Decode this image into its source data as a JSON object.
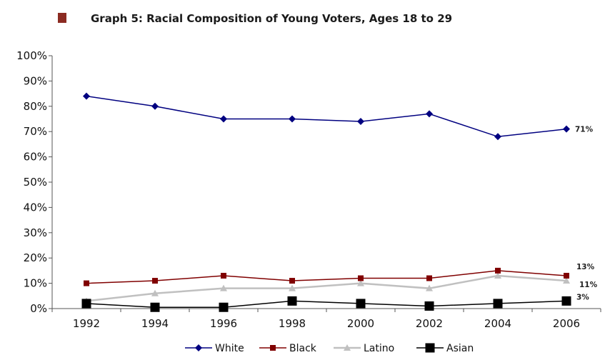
{
  "title_marker_color": "#8B2B22",
  "chart_data": {
    "type": "line",
    "title": "Graph 5: Racial Composition of Young Voters, Ages 18 to 29",
    "xlabel": "",
    "ylabel": "",
    "x": [
      "1992",
      "1994",
      "1996",
      "1998",
      "2000",
      "2002",
      "2004",
      "2006"
    ],
    "ylim": [
      0,
      100
    ],
    "y_ticks": [
      "0%",
      "10%",
      "20%",
      "30%",
      "40%",
      "50%",
      "60%",
      "70%",
      "80%",
      "90%",
      "100%"
    ],
    "grid": false,
    "legend_position": "bottom",
    "series": [
      {
        "name": "White",
        "values": [
          84,
          80,
          75,
          75,
          74,
          77,
          68,
          71
        ],
        "color": "#000080",
        "marker": "diamond",
        "end_label": "71%"
      },
      {
        "name": "Black",
        "values": [
          10,
          11,
          13,
          11,
          12,
          12,
          15,
          13
        ],
        "color": "#800000",
        "marker": "square",
        "end_label": "13%"
      },
      {
        "name": "Latino",
        "values": [
          3,
          6,
          8,
          8,
          10,
          8,
          13,
          11
        ],
        "color": "#C0C0C0",
        "marker": "triangle",
        "end_label": "11%"
      },
      {
        "name": "Asian",
        "values": [
          2,
          0.5,
          0.5,
          3,
          2,
          1,
          2,
          3
        ],
        "color": "#000000",
        "marker": "bigsquare",
        "end_label": "3%"
      }
    ]
  }
}
